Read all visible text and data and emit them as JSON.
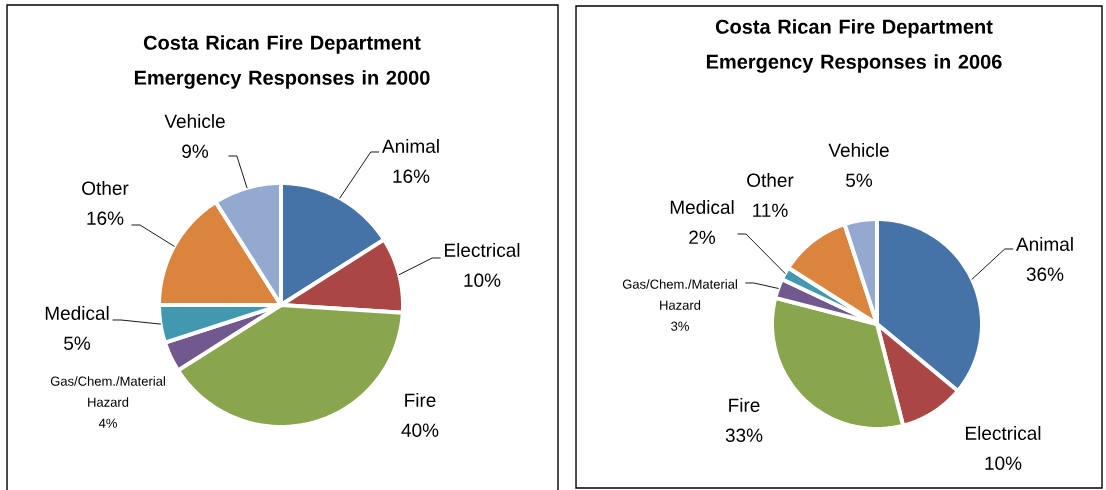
{
  "chart_data": [
    {
      "type": "pie",
      "title": "Costa Rican Fire Department Emergency Responses in 2000",
      "categories": [
        "Animal",
        "Electrical",
        "Fire",
        "Gas/Chem./Material Hazard",
        "Medical",
        "Other",
        "Vehicle"
      ],
      "values": [
        16,
        10,
        40,
        4,
        5,
        16,
        9
      ],
      "value_labels": [
        "16%",
        "10%",
        "40%",
        "4%",
        "5%",
        "16%",
        "9%"
      ],
      "colors": [
        "#4572a7",
        "#aa4643",
        "#89a54e",
        "#71588f",
        "#4198af",
        "#db843d",
        "#93a9cf"
      ]
    },
    {
      "type": "pie",
      "title": "Costa Rican Fire Department Emergency Responses in 2006",
      "categories": [
        "Animal",
        "Electrical",
        "Fire",
        "Gas/Chem./Material Hazard",
        "Medical",
        "Other",
        "Vehicle"
      ],
      "values": [
        36,
        10,
        33,
        3,
        2,
        11,
        5
      ],
      "value_labels": [
        "36%",
        "10%",
        "33%",
        "3%",
        "2%",
        "11%",
        "5%"
      ],
      "colors": [
        "#4572a7",
        "#aa4643",
        "#89a54e",
        "#71588f",
        "#4198af",
        "#db843d",
        "#93a9cf"
      ]
    }
  ]
}
